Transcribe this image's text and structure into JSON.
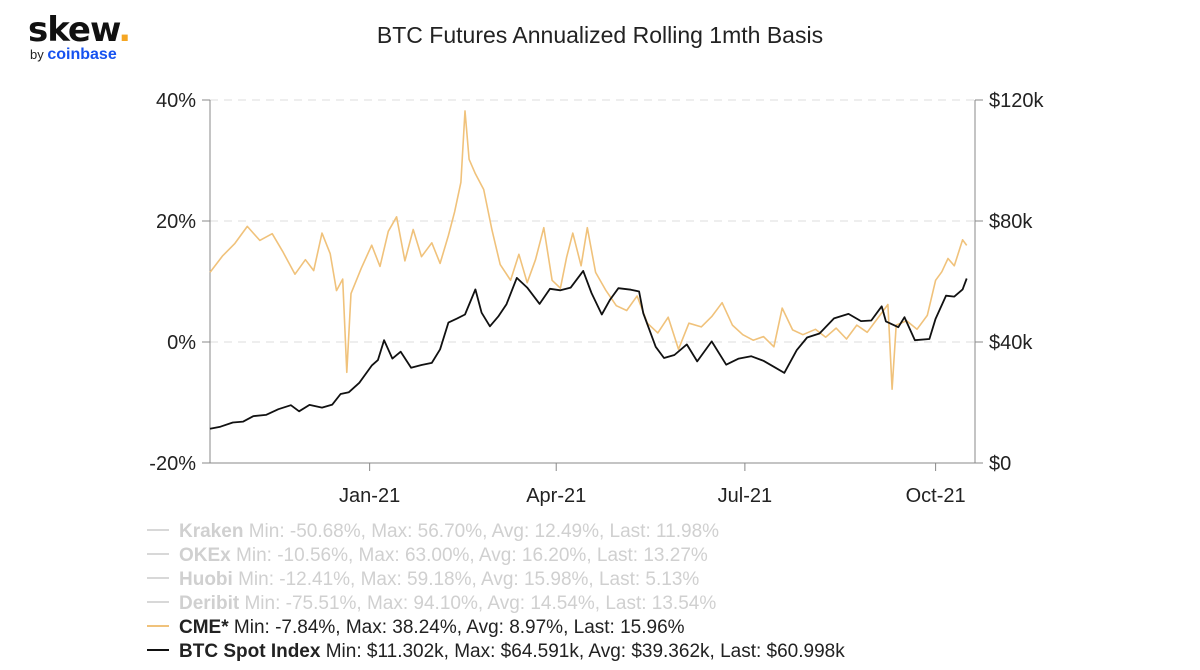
{
  "brand": {
    "name": "skew",
    "dot": ".",
    "by": "by",
    "parent": "coinbase"
  },
  "colors": {
    "cme": "#f0c27b",
    "btc": "#111111",
    "muted": "#d8d8d8",
    "grid": "#dddddd",
    "axis": "#888888"
  },
  "chart_data": {
    "type": "line",
    "title": "BTC Futures Annualized Rolling 1mth Basis",
    "grid": true,
    "x_range": [
      "2020-10-16",
      "2021-10-20"
    ],
    "x_ticks": [
      {
        "date": "2021-01-01",
        "label": "Jan-21"
      },
      {
        "date": "2021-04-01",
        "label": "Apr-21"
      },
      {
        "date": "2021-07-01",
        "label": "Jul-21"
      },
      {
        "date": "2021-10-01",
        "label": "Oct-21"
      }
    ],
    "y_left": {
      "min": -20,
      "max": 40,
      "ticks": [
        -20,
        0,
        20,
        40
      ],
      "tick_labels": [
        "-20%",
        "0%",
        "20%",
        "40%"
      ]
    },
    "y_right": {
      "min": 0,
      "max": 120,
      "ticks": [
        0,
        40,
        80,
        120
      ],
      "tick_labels": [
        "$0",
        "$40k",
        "$80k",
        "$120k"
      ]
    },
    "series": [
      {
        "name": "CME*",
        "axis": "left",
        "color": "#f0c27b",
        "points": [
          [
            "2020-10-16",
            11.5
          ],
          [
            "2020-10-22",
            14.2
          ],
          [
            "2020-10-28",
            16.3
          ],
          [
            "2020-11-03",
            19.1
          ],
          [
            "2020-11-09",
            16.8
          ],
          [
            "2020-11-15",
            17.9
          ],
          [
            "2020-11-20",
            15.0
          ],
          [
            "2020-11-26",
            11.2
          ],
          [
            "2020-12-01",
            13.6
          ],
          [
            "2020-12-05",
            11.8
          ],
          [
            "2020-12-09",
            18.0
          ],
          [
            "2020-12-13",
            14.6
          ],
          [
            "2020-12-16",
            8.5
          ],
          [
            "2020-12-19",
            10.4
          ],
          [
            "2020-12-21",
            -5.0
          ],
          [
            "2020-12-23",
            8.0
          ],
          [
            "2020-12-28",
            12.2
          ],
          [
            "2021-01-02",
            16.0
          ],
          [
            "2021-01-06",
            12.5
          ],
          [
            "2021-01-10",
            18.3
          ],
          [
            "2021-01-14",
            20.7
          ],
          [
            "2021-01-18",
            13.4
          ],
          [
            "2021-01-22",
            18.6
          ],
          [
            "2021-01-26",
            14.1
          ],
          [
            "2021-01-31",
            16.4
          ],
          [
            "2021-02-04",
            13.0
          ],
          [
            "2021-02-08",
            17.6
          ],
          [
            "2021-02-11",
            21.5
          ],
          [
            "2021-02-14",
            26.4
          ],
          [
            "2021-02-16",
            38.2
          ],
          [
            "2021-02-18",
            30.2
          ],
          [
            "2021-02-21",
            27.8
          ],
          [
            "2021-02-25",
            25.2
          ],
          [
            "2021-03-01",
            18.5
          ],
          [
            "2021-03-05",
            12.8
          ],
          [
            "2021-03-10",
            10.2
          ],
          [
            "2021-03-14",
            14.5
          ],
          [
            "2021-03-18",
            9.8
          ],
          [
            "2021-03-22",
            13.6
          ],
          [
            "2021-03-26",
            18.9
          ],
          [
            "2021-03-30",
            10.2
          ],
          [
            "2021-04-03",
            8.9
          ],
          [
            "2021-04-06",
            14.0
          ],
          [
            "2021-04-09",
            18.0
          ],
          [
            "2021-04-13",
            12.6
          ],
          [
            "2021-04-16",
            18.9
          ],
          [
            "2021-04-20",
            11.5
          ],
          [
            "2021-04-25",
            8.5
          ],
          [
            "2021-04-30",
            6.0
          ],
          [
            "2021-05-05",
            5.2
          ],
          [
            "2021-05-10",
            7.6
          ],
          [
            "2021-05-15",
            3.1
          ],
          [
            "2021-05-20",
            1.5
          ],
          [
            "2021-05-25",
            4.1
          ],
          [
            "2021-05-30",
            -1.2
          ],
          [
            "2021-06-04",
            3.1
          ],
          [
            "2021-06-10",
            2.5
          ],
          [
            "2021-06-15",
            4.2
          ],
          [
            "2021-06-20",
            6.5
          ],
          [
            "2021-06-25",
            2.8
          ],
          [
            "2021-06-30",
            1.2
          ],
          [
            "2021-07-05",
            0.3
          ],
          [
            "2021-07-10",
            0.9
          ],
          [
            "2021-07-15",
            -0.8
          ],
          [
            "2021-07-19",
            5.6
          ],
          [
            "2021-07-24",
            2.0
          ],
          [
            "2021-07-29",
            1.2
          ],
          [
            "2021-08-04",
            2.1
          ],
          [
            "2021-08-09",
            0.8
          ],
          [
            "2021-08-14",
            2.3
          ],
          [
            "2021-08-19",
            0.5
          ],
          [
            "2021-08-24",
            2.8
          ],
          [
            "2021-08-29",
            1.6
          ],
          [
            "2021-09-03",
            3.9
          ],
          [
            "2021-09-08",
            6.2
          ],
          [
            "2021-09-10",
            -7.8
          ],
          [
            "2021-09-12",
            2.8
          ],
          [
            "2021-09-17",
            3.5
          ],
          [
            "2021-09-22",
            2.1
          ],
          [
            "2021-09-27",
            4.4
          ],
          [
            "2021-10-01",
            10.2
          ],
          [
            "2021-10-04",
            11.6
          ],
          [
            "2021-10-07",
            13.8
          ],
          [
            "2021-10-10",
            12.6
          ],
          [
            "2021-10-14",
            16.9
          ],
          [
            "2021-10-16",
            15.96
          ]
        ]
      },
      {
        "name": "BTC Spot Index",
        "axis": "right",
        "color": "#111111",
        "points": [
          [
            "2020-10-16",
            11.3
          ],
          [
            "2020-10-21",
            12.0
          ],
          [
            "2020-10-27",
            13.4
          ],
          [
            "2020-11-01",
            13.7
          ],
          [
            "2020-11-06",
            15.5
          ],
          [
            "2020-11-12",
            15.9
          ],
          [
            "2020-11-18",
            17.8
          ],
          [
            "2020-11-24",
            19.1
          ],
          [
            "2020-11-28",
            17.1
          ],
          [
            "2020-12-03",
            19.2
          ],
          [
            "2020-12-09",
            18.3
          ],
          [
            "2020-12-14",
            19.3
          ],
          [
            "2020-12-18",
            22.8
          ],
          [
            "2020-12-22",
            23.4
          ],
          [
            "2020-12-27",
            26.5
          ],
          [
            "2021-01-02",
            32.2
          ],
          [
            "2021-01-05",
            34.0
          ],
          [
            "2021-01-08",
            40.6
          ],
          [
            "2021-01-12",
            34.5
          ],
          [
            "2021-01-16",
            36.8
          ],
          [
            "2021-01-21",
            31.5
          ],
          [
            "2021-01-26",
            32.4
          ],
          [
            "2021-01-31",
            33.1
          ],
          [
            "2021-02-04",
            37.6
          ],
          [
            "2021-02-08",
            46.4
          ],
          [
            "2021-02-12",
            47.7
          ],
          [
            "2021-02-16",
            49.1
          ],
          [
            "2021-02-21",
            57.4
          ],
          [
            "2021-02-24",
            49.7
          ],
          [
            "2021-02-28",
            45.2
          ],
          [
            "2021-03-04",
            48.4
          ],
          [
            "2021-03-08",
            52.5
          ],
          [
            "2021-03-13",
            61.2
          ],
          [
            "2021-03-18",
            58.0
          ],
          [
            "2021-03-24",
            52.6
          ],
          [
            "2021-03-29",
            57.6
          ],
          [
            "2021-04-03",
            57.1
          ],
          [
            "2021-04-08",
            58.0
          ],
          [
            "2021-04-14",
            63.5
          ],
          [
            "2021-04-18",
            56.2
          ],
          [
            "2021-04-23",
            49.1
          ],
          [
            "2021-04-27",
            54.0
          ],
          [
            "2021-05-01",
            57.8
          ],
          [
            "2021-05-07",
            57.3
          ],
          [
            "2021-05-11",
            56.7
          ],
          [
            "2021-05-13",
            49.5
          ],
          [
            "2021-05-19",
            38.4
          ],
          [
            "2021-05-23",
            34.7
          ],
          [
            "2021-05-28",
            35.7
          ],
          [
            "2021-06-03",
            39.2
          ],
          [
            "2021-06-08",
            33.6
          ],
          [
            "2021-06-15",
            40.2
          ],
          [
            "2021-06-22",
            32.5
          ],
          [
            "2021-06-28",
            34.5
          ],
          [
            "2021-07-04",
            35.3
          ],
          [
            "2021-07-10",
            33.8
          ],
          [
            "2021-07-15",
            31.8
          ],
          [
            "2021-07-20",
            29.8
          ],
          [
            "2021-07-26",
            37.3
          ],
          [
            "2021-07-31",
            41.5
          ],
          [
            "2021-08-06",
            42.8
          ],
          [
            "2021-08-13",
            47.8
          ],
          [
            "2021-08-20",
            49.3
          ],
          [
            "2021-08-26",
            46.9
          ],
          [
            "2021-08-31",
            47.1
          ],
          [
            "2021-09-05",
            51.8
          ],
          [
            "2021-09-07",
            46.8
          ],
          [
            "2021-09-13",
            44.9
          ],
          [
            "2021-09-16",
            48.2
          ],
          [
            "2021-09-21",
            40.6
          ],
          [
            "2021-09-28",
            41.0
          ],
          [
            "2021-10-01",
            47.7
          ],
          [
            "2021-10-06",
            55.3
          ],
          [
            "2021-10-10",
            55.0
          ],
          [
            "2021-10-14",
            57.4
          ],
          [
            "2021-10-16",
            61.0
          ]
        ]
      }
    ]
  },
  "legend": [
    {
      "name": "Kraken",
      "stats": "Min: -50.68%, Max: 56.70%, Avg: 12.49%, Last: 11.98%",
      "active": false
    },
    {
      "name": "OKEx",
      "stats": "Min: -10.56%, Max: 63.00%, Avg: 16.20%, Last: 13.27%",
      "active": false
    },
    {
      "name": "Huobi",
      "stats": "Min: -12.41%, Max: 59.18%, Avg: 15.98%, Last: 5.13%",
      "active": false
    },
    {
      "name": "Deribit",
      "stats": "Min: -75.51%, Max: 94.10%, Avg: 14.54%, Last: 13.54%",
      "active": false
    },
    {
      "name": "CME*",
      "stats": "Min: -7.84%, Max: 38.24%, Avg: 8.97%, Last: 15.96%",
      "active": true
    },
    {
      "name": "BTC Spot Index",
      "stats": "Min: $11.302k, Max: $64.591k, Avg: $39.362k, Last: $60.998k",
      "active": true
    }
  ]
}
